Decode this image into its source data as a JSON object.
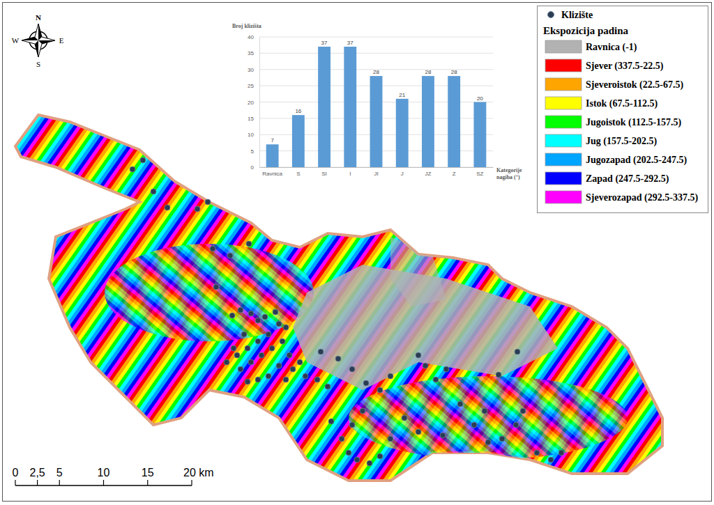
{
  "chart_data": {
    "type": "bar",
    "y_label": "Broj klizišta",
    "x_label": "Kategorije nagiba (°)",
    "categories": [
      "Ravnica",
      "S",
      "SI",
      "I",
      "JI",
      "J",
      "JZ",
      "Z",
      "SZ"
    ],
    "values": [
      7,
      16,
      37,
      37,
      28,
      21,
      28,
      28,
      20
    ],
    "color": "#5b9bd5",
    "ylim": [
      0,
      40
    ],
    "yticks": [
      0,
      5,
      10,
      15,
      20,
      25,
      30,
      35,
      40
    ],
    "grid": true,
    "data_labels": true
  },
  "map": {
    "legend": {
      "point_label": "Klizište",
      "title": "Ekspozicija padina",
      "classes": [
        {
          "label": "Ravnica (-1)",
          "color": "#b2b2b2"
        },
        {
          "label": "Sjever (337.5-22.5)",
          "color": "#ff0000"
        },
        {
          "label": "Sjeveroistok (22.5-67.5)",
          "color": "#ffa500"
        },
        {
          "label": "Istok (67.5-112.5)",
          "color": "#ffff00"
        },
        {
          "label": "Jugoistok (112.5-157.5)",
          "color": "#00ff00"
        },
        {
          "label": "Jug (157.5-202.5)",
          "color": "#00ffff"
        },
        {
          "label": "Jugozapad (202.5-247.5)",
          "color": "#00a5ff"
        },
        {
          "label": "Zapad (247.5-292.5)",
          "color": "#0000ff"
        },
        {
          "label": "Sjeverozapad (292.5-337.5)",
          "color": "#ff00ff"
        }
      ]
    },
    "scale_bar": {
      "ticks": [
        0,
        {
          "value": 2.5,
          "label": "2,5"
        },
        5,
        10,
        15,
        {
          "value": 20,
          "label": "20 km"
        }
      ]
    },
    "compass": {
      "north": "N",
      "south": "S",
      "east": "E",
      "west": "W"
    }
  }
}
